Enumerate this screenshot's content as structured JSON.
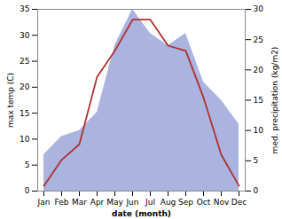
{
  "chart_data": {
    "type": "line",
    "categories": [
      "Jan",
      "Feb",
      "Mar",
      "Apr",
      "May",
      "Jun",
      "Jul",
      "Aug",
      "Sep",
      "Oct",
      "Nov",
      "Dec"
    ],
    "xlabel": "date (month)",
    "ylabel": "max temp (C)",
    "y2label": "med. precipitation (kg/m2)",
    "series": [
      {
        "type": "area",
        "axis": "y2",
        "color": "#aab4df",
        "values": [
          6,
          9,
          10,
          13,
          24,
          30,
          26,
          24,
          26,
          18,
          15,
          11
        ]
      },
      {
        "type": "line",
        "color": "#b03030",
        "values": [
          1,
          6,
          9,
          22,
          27,
          33,
          33,
          28,
          27,
          18,
          7,
          1
        ]
      }
    ],
    "ylim": [
      0,
      35
    ],
    "yticks": [
      0,
      5,
      10,
      15,
      20,
      25,
      30,
      35
    ],
    "y2lim": [
      0,
      30
    ],
    "y2ticks": [
      0,
      5,
      10,
      15,
      20,
      25,
      30
    ]
  }
}
